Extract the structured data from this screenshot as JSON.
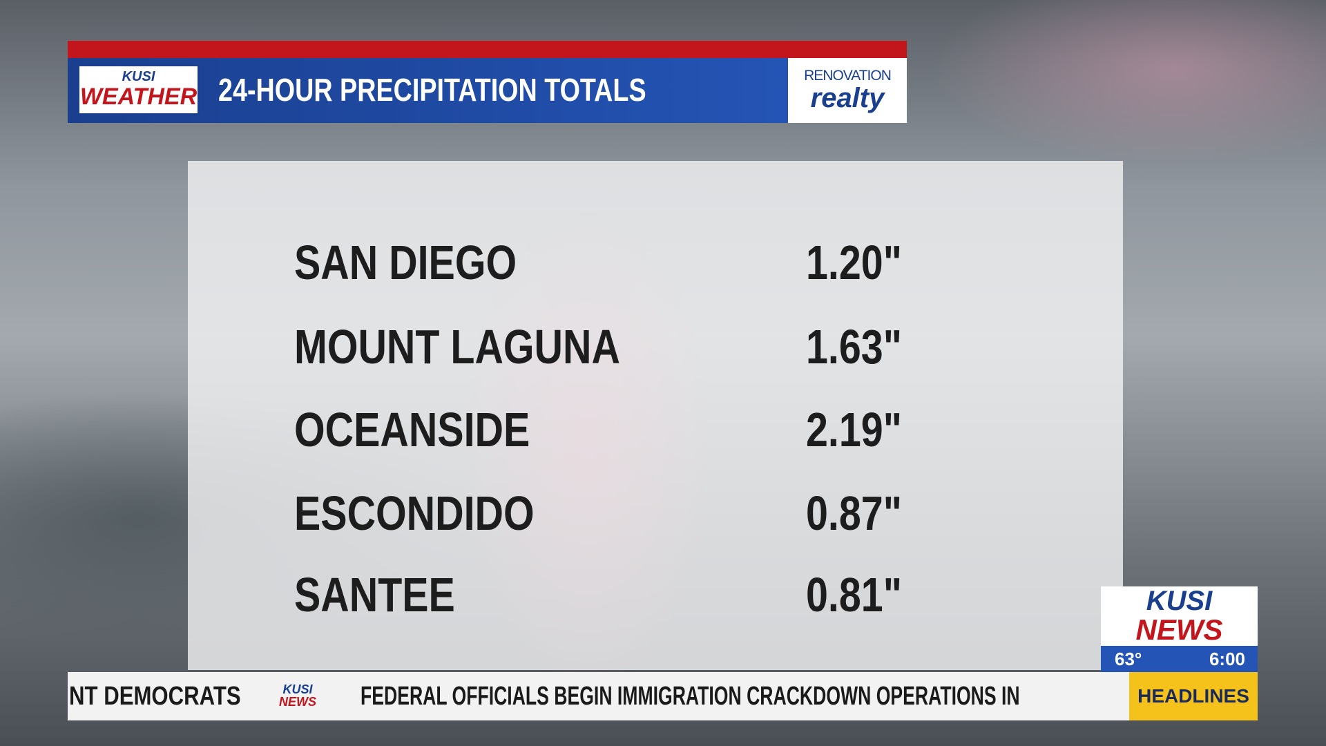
{
  "header": {
    "logo_top": "KUSI",
    "logo_bottom": "WEATHER",
    "title": "24-HOUR PRECIPITATION TOTALS",
    "sponsor_top": "RENOVATION",
    "sponsor_bottom": "realty"
  },
  "table": {
    "rows": [
      [
        "SAN DIEGO",
        "1.20\""
      ],
      [
        "MOUNT LAGUNA",
        "1.63\""
      ],
      [
        "OCEANSIDE",
        "2.19\""
      ],
      [
        "ESCONDIDO",
        "0.87\""
      ],
      [
        "SANTEE",
        "0.81\""
      ]
    ]
  },
  "station": {
    "logo_top": "KUSI",
    "logo_bottom": "NEWS",
    "temperature": "63°",
    "time": "6:00"
  },
  "ticker": {
    "previous": "NT DEMOCRATS",
    "logo_top": "KUSI",
    "logo_bottom": "NEWS",
    "headline": "FEDERAL OFFICIALS BEGIN IMMIGRATION CRACKDOWN OPERATIONS IN",
    "label": "HEADLINES"
  }
}
